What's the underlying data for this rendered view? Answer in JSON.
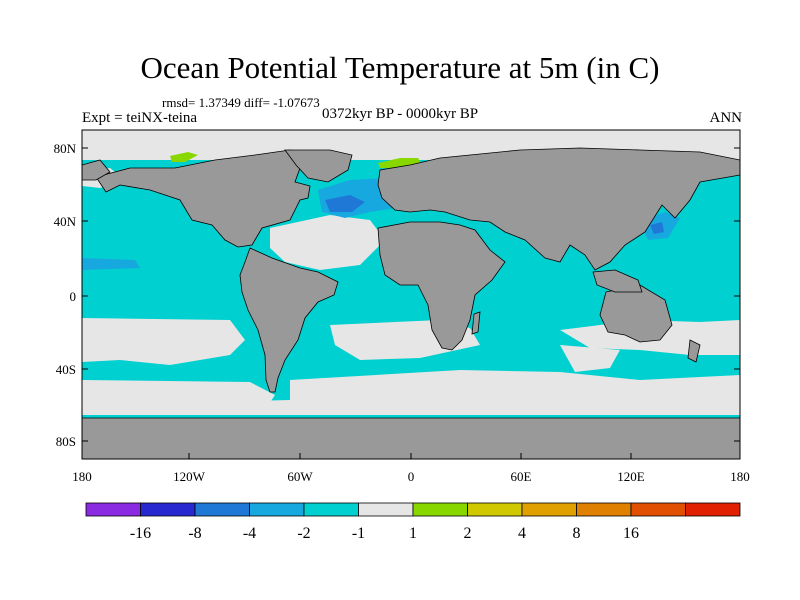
{
  "title": "Ocean Potential Temperature at 5m (in C)",
  "stats_text": "rmsd= 1.37349 diff= -1.07673",
  "left_label": "Expt = teiNX-teina",
  "center_label": "0372kyr BP - 0000kyr BP",
  "right_label": "ANN",
  "colors": {
    "land": "#999999",
    "ocean_cyan": "#00d0d0",
    "ocean_neutral": "#e6e6e6",
    "ocean_light_blue": "#18a8e0",
    "ocean_blue": "#1f78d6",
    "positive_green": "#88d800",
    "coast": "#000000"
  },
  "map": {
    "projection": "cylindrical-equidistant",
    "lat_ticks": [
      "80N",
      "40N",
      "0",
      "40S",
      "80S"
    ],
    "lon_ticks": [
      "180",
      "120W",
      "60W",
      "0",
      "60E",
      "120E",
      "180"
    ]
  },
  "colorbar": {
    "colors": [
      "#8a2be2",
      "#2828d0",
      "#1f78d6",
      "#18a8e0",
      "#00d0d0",
      "#e6e6e6",
      "#88d800",
      "#d0c800",
      "#e0a000",
      "#e08000",
      "#e05000",
      "#e02000"
    ],
    "labels": [
      "-16",
      "-8",
      "-4",
      "-2",
      "-1",
      "1",
      "2",
      "4",
      "8",
      "16"
    ]
  }
}
